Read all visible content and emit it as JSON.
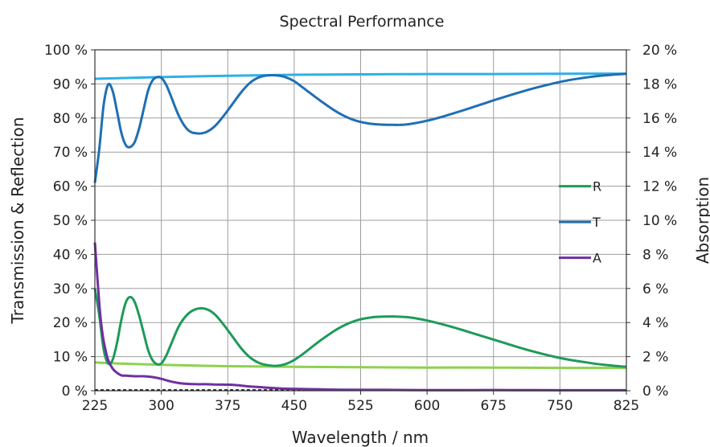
{
  "chart_data": {
    "type": "line",
    "title": "Spectral Performance",
    "xlabel": "Wavelength / nm",
    "ylabel_left": "Transmission & Reflection",
    "ylabel_right": "Absorption",
    "xlim": [
      225,
      825
    ],
    "ylim_left": [
      0,
      100
    ],
    "ylim_right": [
      0,
      20
    ],
    "x_ticks": [
      225,
      300,
      375,
      450,
      525,
      600,
      675,
      750,
      825
    ],
    "x_tick_labels": [
      "225",
      "300",
      "375",
      "450",
      "525",
      "600",
      "675",
      "750",
      "825"
    ],
    "y_left_ticks": [
      0,
      10,
      20,
      30,
      40,
      50,
      60,
      70,
      80,
      90,
      100
    ],
    "y_left_tick_labels": [
      "0 %",
      "10 %",
      "20 %",
      "30 %",
      "40 %",
      "50 %",
      "60 %",
      "70 %",
      "80 %",
      "90 %",
      "100 %"
    ],
    "y_right_ticks": [
      0,
      2,
      4,
      6,
      8,
      10,
      12,
      14,
      16,
      18,
      20
    ],
    "y_right_tick_labels": [
      "0 %",
      "2 %",
      "4 %",
      "6 %",
      "8 %",
      "10 %",
      "12 %",
      "14 %",
      "16 %",
      "18 %",
      "20 %"
    ],
    "grid": true,
    "legend_position": "center-right",
    "series": [
      {
        "name": "R",
        "axis": "left",
        "color": "#1e9a5a",
        "x": [
          225,
          230,
          235,
          240,
          245,
          250,
          255,
          260,
          265,
          270,
          275,
          280,
          285,
          290,
          295,
          300,
          305,
          310,
          320,
          330,
          340,
          350,
          360,
          370,
          380,
          390,
          400,
          410,
          420,
          430,
          440,
          450,
          460,
          480,
          500,
          520,
          540,
          560,
          570,
          580,
          600,
          620,
          640,
          660,
          680,
          700,
          720,
          740,
          760,
          780,
          800,
          825
        ],
        "y": [
          30,
          22,
          12,
          8,
          9,
          14,
          21,
          26,
          27.5,
          26,
          22,
          17,
          12,
          9,
          7.8,
          8,
          10,
          13,
          19,
          22.5,
          24,
          24,
          22.5,
          19.5,
          16,
          12.5,
          9.8,
          8.2,
          7.5,
          7.3,
          7.8,
          9,
          10.8,
          14.8,
          18.3,
          20.6,
          21.6,
          21.8,
          21.7,
          21.5,
          20.6,
          19.3,
          17.8,
          16.2,
          14.6,
          13,
          11.5,
          10.2,
          9.1,
          8.3,
          7.6,
          7
        ]
      },
      {
        "name": "T",
        "axis": "left",
        "color": "#1f6fb4",
        "x": [
          225,
          230,
          235,
          240,
          245,
          250,
          255,
          260,
          265,
          270,
          275,
          280,
          285,
          290,
          295,
          300,
          305,
          310,
          320,
          330,
          340,
          350,
          360,
          370,
          380,
          390,
          400,
          410,
          420,
          430,
          440,
          450,
          460,
          480,
          500,
          520,
          540,
          560,
          570,
          580,
          600,
          620,
          640,
          660,
          680,
          700,
          720,
          740,
          760,
          780,
          800,
          825
        ],
        "y": [
          61,
          71,
          84,
          89.8,
          88,
          82,
          75.5,
          72,
          71.5,
          73,
          77,
          82.5,
          88,
          91,
          92,
          91.8,
          90,
          87,
          80.5,
          76.5,
          75.5,
          75.8,
          77.5,
          80.5,
          84,
          87.5,
          90.3,
          91.9,
          92.5,
          92.5,
          92,
          90.8,
          88.9,
          85,
          81.5,
          79.2,
          78.2,
          78,
          78,
          78.2,
          79.2,
          80.6,
          82.2,
          83.9,
          85.6,
          87.2,
          88.7,
          90,
          91.1,
          91.9,
          92.5,
          93
        ]
      },
      {
        "name": "A",
        "axis": "right",
        "color": "#7030a0",
        "x": [
          225,
          228,
          231,
          234,
          237,
          240,
          245,
          250,
          255,
          260,
          270,
          280,
          290,
          300,
          310,
          320,
          330,
          340,
          350,
          360,
          370,
          380,
          390,
          400,
          420,
          440,
          460,
          480,
          500,
          550,
          600,
          650,
          700,
          750,
          800,
          825
        ],
        "y": [
          8.7,
          6.5,
          4.5,
          3.2,
          2.4,
          1.8,
          1.3,
          1.05,
          0.9,
          0.88,
          0.85,
          0.85,
          0.8,
          0.7,
          0.55,
          0.45,
          0.4,
          0.38,
          0.38,
          0.37,
          0.36,
          0.35,
          0.3,
          0.25,
          0.18,
          0.12,
          0.1,
          0.08,
          0.06,
          0.05,
          0.04,
          0.04,
          0.04,
          0.03,
          0.03,
          0.03
        ]
      },
      {
        "name": "",
        "axis": "left",
        "color": "#8fd14f",
        "x": [
          225,
          250,
          300,
          375,
          450,
          525,
          600,
          675,
          750,
          825
        ],
        "y": [
          8.3,
          8,
          7.6,
          7.2,
          7,
          6.9,
          6.8,
          6.8,
          6.7,
          6.7
        ]
      },
      {
        "name": "",
        "axis": "left",
        "color": "#2eb0e8",
        "x": [
          225,
          250,
          300,
          375,
          450,
          525,
          600,
          675,
          750,
          825
        ],
        "y": [
          91.5,
          91.7,
          92,
          92.4,
          92.7,
          92.8,
          92.9,
          92.9,
          93,
          93
        ]
      }
    ],
    "dashed_zero_line": {
      "axis": "left",
      "y": 0,
      "color": "#000000"
    }
  }
}
